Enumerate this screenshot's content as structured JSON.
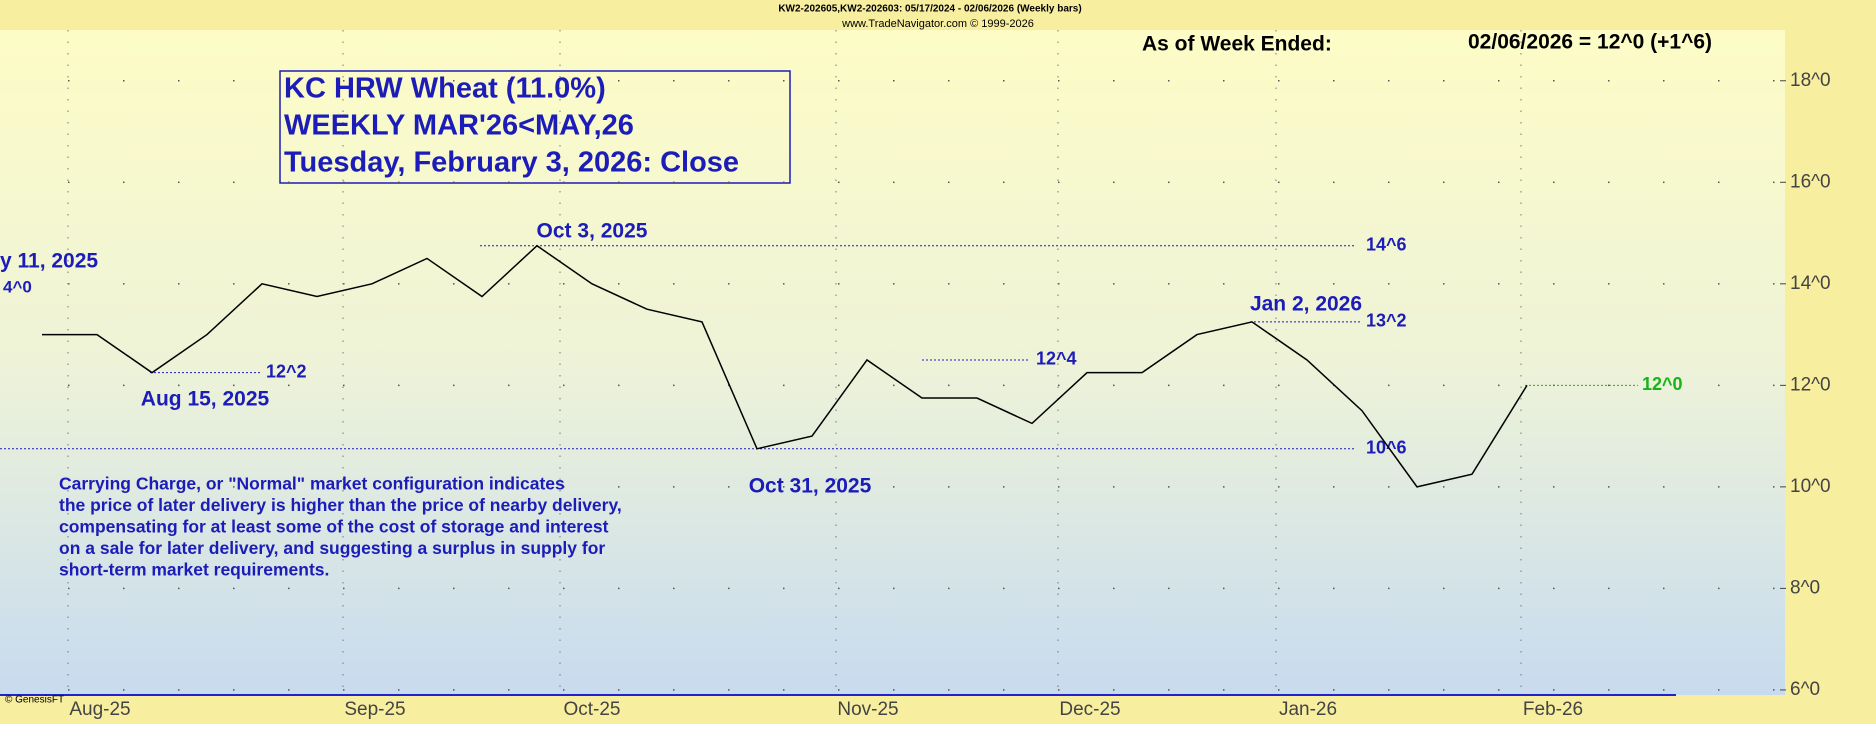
{
  "chart_data": {
    "type": "line",
    "header": "KW2-202605,KW2-202603:  05/17/2024 - 02/06/2026  (Weekly bars)",
    "source": "www.TradeNavigator.com © 1999-2026",
    "as_of_label": "As of Week Ended:",
    "as_of_value": "02/06/2026 = 12^0 (+1^6)",
    "title_lines": [
      "KC HRW Wheat (11.0%)",
      "WEEKLY MAR'26<MAY,26",
      "Tuesday, February 3, 2026: Close"
    ],
    "note_lines": [
      "Carrying Charge, or \"Normal\" market configuration indicates",
      "the price of later delivery is higher than the price of nearby delivery,",
      "compensating for at least some of the cost of storage and interest",
      "on a sale for later delivery, and suggesting a surplus in supply for",
      "short-term market requirements."
    ],
    "credit": "© GenesisFT",
    "clipped_labels": [
      "y 11, 2025",
      "4^0"
    ],
    "color": "#000000",
    "values": [
      13.0,
      13.0,
      12.25,
      13.0,
      14.0,
      13.75,
      14.0,
      14.5,
      13.75,
      14.75,
      14.0,
      13.5,
      13.25,
      10.75,
      11.0,
      12.5,
      11.75,
      11.75,
      11.25,
      12.25,
      12.25,
      13.0,
      13.25,
      12.5,
      11.5,
      10.0,
      10.25,
      12.0
    ],
    "x_labels": [
      "Aug-25",
      "Sep-25",
      "Oct-25",
      "Nov-25",
      "Dec-25",
      "Jan-26",
      "Feb-26"
    ],
    "annotations": [
      {
        "date": "Aug 15, 2025",
        "level": {
          "value": 12.25,
          "label": "12^2"
        }
      },
      {
        "date": "Oct 3, 2025",
        "level": {
          "value": 14.75,
          "label": "14^6"
        }
      },
      {
        "date": "Oct 31, 2025",
        "level": {
          "value": 10.75,
          "label": "10^6"
        }
      },
      {
        "level": {
          "value": 12.5,
          "label": "12^4"
        }
      },
      {
        "date": "Jan 2, 2026",
        "level": {
          "value": 13.25,
          "label": "13^2"
        }
      },
      {
        "level": {
          "value": 12.0,
          "label": "12^0"
        },
        "color": "#19b219"
      }
    ],
    "ylim": [
      5.9,
      19.0
    ],
    "yticks": [
      {
        "value": 6,
        "label": "6^0"
      },
      {
        "value": 8,
        "label": "8^0"
      },
      {
        "value": 10,
        "label": "10^0"
      },
      {
        "value": 12,
        "label": "12^0"
      },
      {
        "value": 14,
        "label": "14^0"
      },
      {
        "value": 16,
        "label": "16^0"
      },
      {
        "value": 18,
        "label": "18^0"
      }
    ],
    "grid": true
  }
}
